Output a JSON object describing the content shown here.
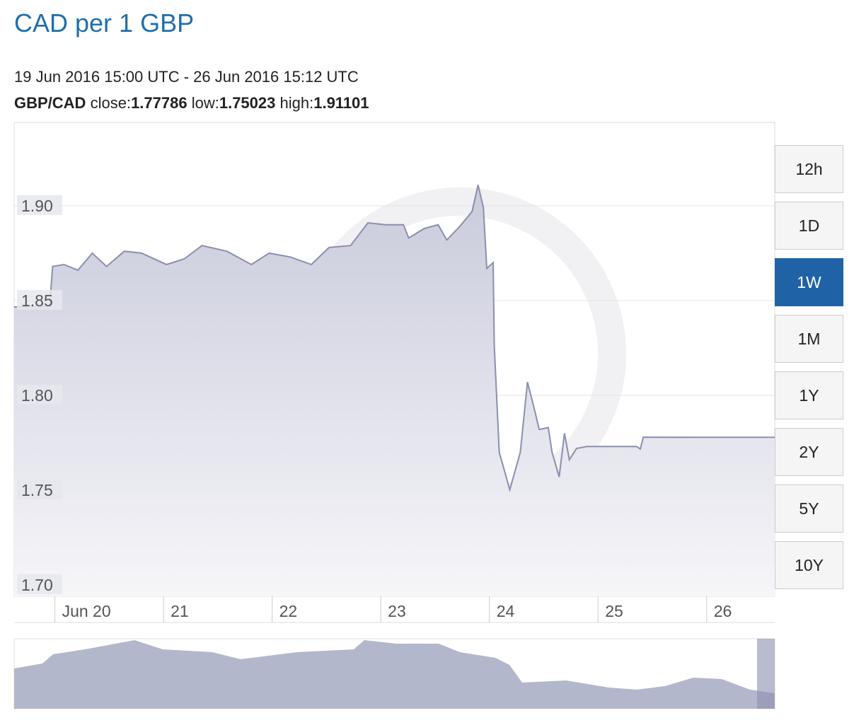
{
  "page": {
    "title": "CAD per 1 GBP",
    "range": "19 Jun 2016 15:00 UTC - 26 Jun 2016 15:12 UTC",
    "summary": {
      "pair": "GBP/CAD",
      "close_label": "close:",
      "close": 1.77786,
      "low_label": "low:",
      "low": 1.75023,
      "high_label": "high:",
      "high": 1.91101
    },
    "buttons": [
      "12h",
      "1D",
      "1W",
      "1M",
      "1Y",
      "2Y",
      "5Y",
      "10Y"
    ],
    "active_button": "1W"
  },
  "chart_data": {
    "type": "area",
    "color": "#8a8fae",
    "grid": true,
    "x": [
      "2016-06-19 15:00",
      "2016-06-19 22:50",
      "2016-06-19 23:30",
      "2016-06-20 02:00",
      "2016-06-20 05:05",
      "2016-06-20 08:15",
      "2016-06-20 11:25",
      "2016-06-20 15:20",
      "2016-06-20 19:10",
      "2016-06-21 00:40",
      "2016-06-21 04:35",
      "2016-06-21 08:30",
      "2016-06-21 14:00",
      "2016-06-21 19:25",
      "2016-06-21 23:20",
      "2016-06-22 04:00",
      "2016-06-22 08:40",
      "2016-06-22 12:35",
      "2016-06-22 17:20",
      "2016-06-22 21:10",
      "2016-06-23 01:05",
      "2016-06-23 05:00",
      "2016-06-23 06:10",
      "2016-06-23 09:35",
      "2016-06-23 12:40",
      "2016-06-23 14:35",
      "2016-06-23 17:25",
      "2016-06-23 20:10",
      "2016-06-23 21:30",
      "2016-06-23 22:40",
      "2016-06-23 23:25",
      "2016-06-24 00:50",
      "2016-06-24 01:05",
      "2016-06-24 02:10",
      "2016-06-24 04:30",
      "2016-06-24 06:50",
      "2016-06-24 08:25",
      "2016-06-24 09:55",
      "2016-06-24 11:00",
      "2016-06-24 13:00",
      "2016-06-24 13:50",
      "2016-06-24 15:25",
      "2016-06-24 16:35",
      "2016-06-24 17:40",
      "2016-06-24 19:15",
      "2016-06-24 21:35",
      "2016-06-25 00:40",
      "2016-06-25 08:30",
      "2016-06-25 09:20",
      "2016-06-25 10:00",
      "2016-06-26 15:12"
    ],
    "values": [
      1.8466,
      1.847,
      1.868,
      1.869,
      1.866,
      1.875,
      1.868,
      1.876,
      1.875,
      1.869,
      1.872,
      1.879,
      1.876,
      1.869,
      1.875,
      1.873,
      1.869,
      1.878,
      1.879,
      1.891,
      1.89,
      1.89,
      1.883,
      1.888,
      1.89,
      1.882,
      1.889,
      1.897,
      1.911,
      1.899,
      1.867,
      1.87,
      1.826,
      1.77,
      1.7502,
      1.77,
      1.807,
      1.793,
      1.782,
      1.783,
      1.77,
      1.757,
      1.78,
      1.766,
      1.772,
      1.773,
      1.773,
      1.773,
      1.7717,
      1.7779,
      1.77786
    ],
    "xlim": [
      "2016-06-19 15:00",
      "2016-06-26 15:12"
    ],
    "xticks": [
      {
        "value": "2016-06-20 00:00",
        "label": "Jun 20"
      },
      {
        "value": "2016-06-21 00:00",
        "label": "21"
      },
      {
        "value": "2016-06-22 00:00",
        "label": "22"
      },
      {
        "value": "2016-06-23 00:00",
        "label": "23"
      },
      {
        "value": "2016-06-24 00:00",
        "label": "24"
      },
      {
        "value": "2016-06-25 00:00",
        "label": "25"
      },
      {
        "value": "2016-06-26 00:00",
        "label": "26"
      }
    ],
    "ylim": [
      1.694,
      1.944
    ],
    "yticks": [
      {
        "value": 1.7,
        "label": "1.70"
      },
      {
        "value": 1.75,
        "label": "1.75"
      },
      {
        "value": 1.8,
        "label": "1.80"
      },
      {
        "value": 1.85,
        "label": "1.85"
      },
      {
        "value": 1.9,
        "label": "1.90"
      }
    ]
  }
}
